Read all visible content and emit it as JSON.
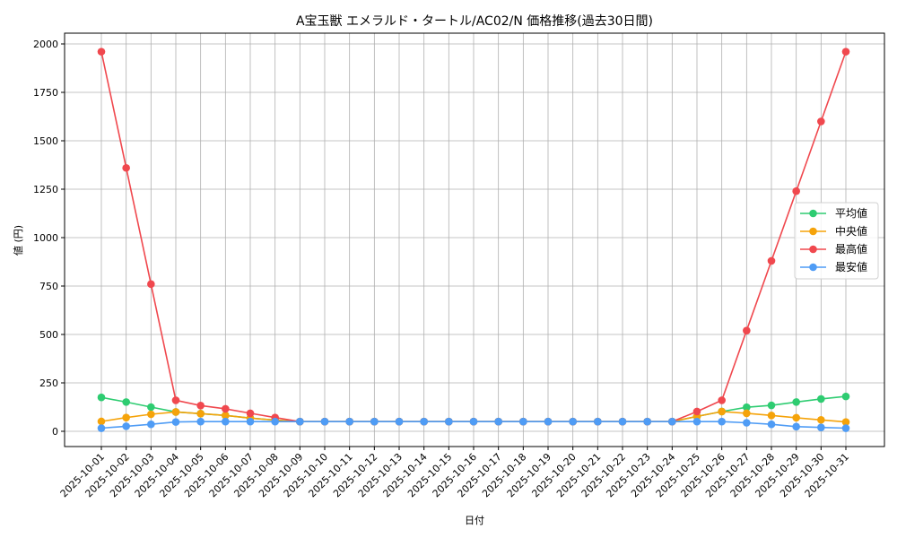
{
  "chart_data": {
    "type": "line",
    "title": "A宝玉獣 エメラルド・タートル/AC02/N 価格推移(過去30日間)",
    "xlabel": "日付",
    "ylabel": "値 (円)",
    "ylim": [
      -80,
      2055
    ],
    "yticks": [
      0,
      250,
      500,
      750,
      1000,
      1250,
      1500,
      1750,
      2000
    ],
    "grid": true,
    "legend_position": "center right",
    "categories": [
      "2025-10-01",
      "2025-10-02",
      "2025-10-03",
      "2025-10-04",
      "2025-10-05",
      "2025-10-06",
      "2025-10-07",
      "2025-10-08",
      "2025-10-09",
      "2025-10-10",
      "2025-10-11",
      "2025-10-12",
      "2025-10-13",
      "2025-10-14",
      "2025-10-15",
      "2025-10-16",
      "2025-10-17",
      "2025-10-18",
      "2025-10-19",
      "2025-10-20",
      "2025-10-21",
      "2025-10-22",
      "2025-10-23",
      "2025-10-24",
      "2025-10-25",
      "2025-10-26",
      "2025-10-27",
      "2025-10-28",
      "2025-10-29",
      "2025-10-30",
      "2025-10-31"
    ],
    "series": [
      {
        "name": "平均値",
        "color": "#2ecc71",
        "values": [
          175,
          151,
          125,
          100,
          91,
          82,
          68,
          58,
          50,
          50,
          50,
          50,
          50,
          50,
          50,
          50,
          50,
          50,
          50,
          50,
          50,
          50,
          50,
          50,
          77,
          102,
          124,
          134,
          151,
          167,
          180
        ]
      },
      {
        "name": "中央値",
        "color": "#f5a30a",
        "values": [
          51,
          71,
          88,
          100,
          91,
          82,
          68,
          58,
          50,
          50,
          50,
          50,
          50,
          50,
          50,
          50,
          50,
          50,
          50,
          50,
          50,
          50,
          50,
          50,
          77,
          102,
          93,
          82,
          70,
          59,
          48
        ]
      },
      {
        "name": "最高値",
        "color": "#f0484e",
        "values": [
          1960,
          1360,
          760,
          160,
          133,
          116,
          93,
          71,
          50,
          50,
          50,
          50,
          50,
          50,
          50,
          50,
          50,
          50,
          50,
          50,
          50,
          50,
          50,
          50,
          102,
          160,
          520,
          880,
          1240,
          1600,
          1960
        ]
      },
      {
        "name": "最安値",
        "color": "#4f9cf5",
        "values": [
          16,
          26,
          36,
          48,
          50,
          50,
          50,
          50,
          50,
          50,
          50,
          50,
          50,
          50,
          50,
          50,
          50,
          50,
          50,
          50,
          50,
          50,
          50,
          50,
          50,
          50,
          44,
          36,
          24,
          20,
          16
        ]
      }
    ]
  }
}
